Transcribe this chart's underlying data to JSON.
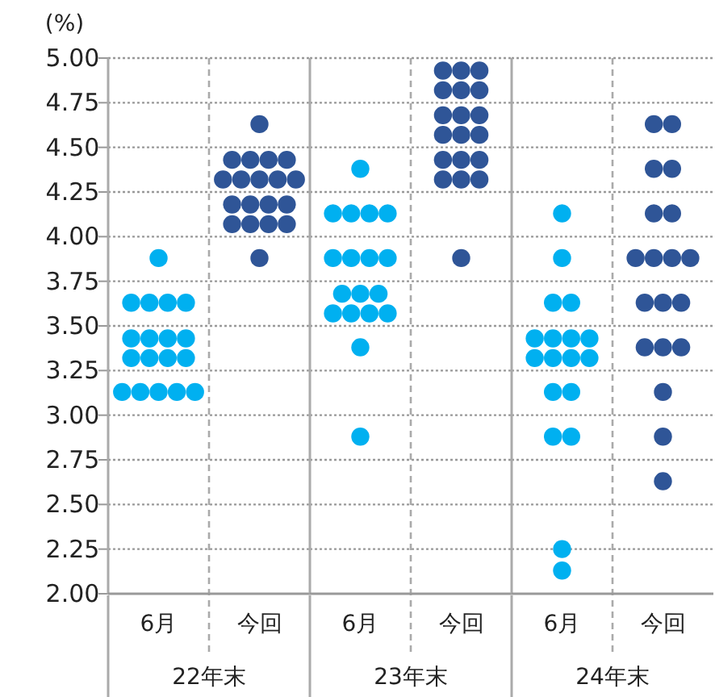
{
  "chart_data": [
    {
      "type": "scatter",
      "ylabel": "(%)",
      "xlabel": "22年末",
      "categories": [
        "6月",
        "今回"
      ],
      "ylim": [
        2,
        5
      ],
      "yticks": [
        {
          "value": 2,
          "label": "2.00"
        },
        {
          "value": 2.25,
          "label": "2.25"
        },
        {
          "value": 2.5,
          "label": "2.50"
        },
        {
          "value": 2.75,
          "label": "2.75"
        },
        {
          "value": 3,
          "label": "3.00"
        },
        {
          "value": 3.25,
          "label": "3.25"
        },
        {
          "value": 3.5,
          "label": "3.50"
        },
        {
          "value": 3.75,
          "label": "3.75"
        },
        {
          "value": 4,
          "label": "4.00"
        },
        {
          "value": 4.25,
          "label": "4.25"
        },
        {
          "value": 4.5,
          "label": "4.50"
        },
        {
          "value": 4.75,
          "label": "4.75"
        },
        {
          "value": 5,
          "label": "5.00"
        }
      ],
      "grid": true,
      "marker": "circle",
      "series": [
        {
          "color": "#00b0f0",
          "x": [
            "6月",
            "6月",
            "6月",
            "6月",
            "6月",
            "6月",
            "6月",
            "6月",
            "6月",
            "6月",
            "6月",
            "6月",
            "6月",
            "6月",
            "6月",
            "6月",
            "6月",
            "6月"
          ],
          "values": [
            3.88,
            3.63,
            3.63,
            3.63,
            3.63,
            3.43,
            3.43,
            3.43,
            3.43,
            3.32,
            3.32,
            3.32,
            3.32,
            3.13,
            3.13,
            3.13,
            3.13,
            3.13
          ]
        },
        {
          "color": "#2f5597",
          "x": [
            "今回",
            "今回",
            "今回",
            "今回",
            "今回",
            "今回",
            "今回",
            "今回",
            "今回",
            "今回",
            "今回",
            "今回",
            "今回",
            "今回",
            "今回",
            "今回",
            "今回",
            "今回",
            "今回"
          ],
          "values": [
            4.63,
            4.43,
            4.43,
            4.43,
            4.43,
            4.32,
            4.32,
            4.32,
            4.32,
            4.32,
            4.18,
            4.18,
            4.18,
            4.18,
            4.07,
            4.07,
            4.07,
            4.07,
            3.88
          ]
        }
      ]
    },
    {
      "type": "scatter",
      "xlabel": "23年末",
      "categories": [
        "6月",
        "今回"
      ],
      "ylim": [
        2,
        5
      ],
      "yticks": [
        2,
        2.25,
        2.5,
        2.75,
        3,
        3.25,
        3.5,
        3.75,
        4,
        4.25,
        4.5,
        4.75,
        5
      ],
      "tick_labels": "x",
      "grid": true,
      "marker": "circle",
      "series": [
        {
          "color": "#00b0f0",
          "x": [
            "6月",
            "6月",
            "6月",
            "6月",
            "6月",
            "6月",
            "6月",
            "6月",
            "6月",
            "6月",
            "6月",
            "6月",
            "6月",
            "6月",
            "6月",
            "6月",
            "6月",
            "6月"
          ],
          "values": [
            4.38,
            4.13,
            4.13,
            4.13,
            4.13,
            3.88,
            3.88,
            3.88,
            3.88,
            3.68,
            3.68,
            3.68,
            3.57,
            3.57,
            3.57,
            3.57,
            3.38,
            2.88
          ]
        },
        {
          "color": "#2f5597",
          "x": [
            "今回",
            "今回",
            "今回",
            "今回",
            "今回",
            "今回",
            "今回",
            "今回",
            "今回",
            "今回",
            "今回",
            "今回",
            "今回",
            "今回",
            "今回",
            "今回",
            "今回",
            "今回",
            "今回"
          ],
          "values": [
            4.93,
            4.93,
            4.93,
            4.82,
            4.82,
            4.82,
            4.68,
            4.68,
            4.68,
            4.57,
            4.57,
            4.57,
            4.43,
            4.43,
            4.43,
            4.32,
            4.32,
            4.32,
            3.88
          ]
        }
      ]
    },
    {
      "type": "scatter",
      "xlabel": "24年末",
      "categories": [
        "6月",
        "今回"
      ],
      "ylim": [
        2,
        5
      ],
      "yticks": [
        2,
        2.25,
        2.5,
        2.75,
        3,
        3.25,
        3.5,
        3.75,
        4,
        4.25,
        4.5,
        4.75,
        5
      ],
      "tick_labels": "x",
      "grid": true,
      "marker": "circle",
      "series": [
        {
          "color": "#00b0f0",
          "x": [
            "6月",
            "6月",
            "6月",
            "6月",
            "6月",
            "6月",
            "6月",
            "6月",
            "6月",
            "6月",
            "6月",
            "6月",
            "6月",
            "6月",
            "6月",
            "6月",
            "6月",
            "6月"
          ],
          "values": [
            4.13,
            3.88,
            3.63,
            3.63,
            3.43,
            3.43,
            3.43,
            3.43,
            3.32,
            3.32,
            3.32,
            3.32,
            3.13,
            3.13,
            2.88,
            2.88,
            2.25,
            2.13
          ]
        },
        {
          "color": "#2f5597",
          "x": [
            "今回",
            "今回",
            "今回",
            "今回",
            "今回",
            "今回",
            "今回",
            "今回",
            "今回",
            "今回",
            "今回",
            "今回",
            "今回",
            "今回",
            "今回",
            "今回",
            "今回",
            "今回",
            "今回"
          ],
          "values": [
            4.63,
            4.63,
            4.38,
            4.38,
            4.13,
            4.13,
            3.88,
            3.88,
            3.88,
            3.88,
            3.63,
            3.63,
            3.63,
            3.38,
            3.38,
            3.38,
            3.13,
            2.88,
            2.63
          ]
        }
      ]
    }
  ]
}
